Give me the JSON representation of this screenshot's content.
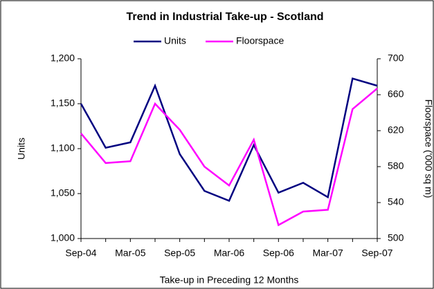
{
  "chart_data": {
    "type": "line",
    "title": "Trend in Industrial Take-up - Scotland",
    "x_label": "Take-up in Preceding 12 Months",
    "y_label": "Units",
    "y2_label": "Floorspace ('000 sq m)",
    "categories": [
      "Sep-04",
      null,
      "Mar-05",
      null,
      "Sep-05",
      null,
      "Mar-06",
      null,
      "Sep-06",
      null,
      "Mar-07",
      null,
      "Sep-07"
    ],
    "series": [
      {
        "name": "Units",
        "color": "#000080",
        "values": [
          1150,
          1101,
          1107,
          1170,
          1094,
          1053,
          1042,
          1104,
          1051,
          1062,
          1046,
          1178,
          1170
        ]
      },
      {
        "name": "Floorspace",
        "color": "#ff00ff",
        "axis": "y2",
        "values": [
          617,
          584,
          586,
          650,
          621,
          580,
          559,
          610,
          515,
          530,
          532,
          644,
          667
        ]
      }
    ],
    "ylim": [
      1000,
      1200
    ],
    "yticks": [
      {
        "value": 1000,
        "label": "1,000"
      },
      {
        "value": 1050,
        "label": "1,050"
      },
      {
        "value": 1100,
        "label": "1,100"
      },
      {
        "value": 1150,
        "label": "1,150"
      },
      {
        "value": 1200,
        "label": "1,200"
      }
    ],
    "y2lim": [
      500,
      700
    ],
    "y2ticks": [
      500,
      540,
      580,
      620,
      660,
      700
    ],
    "legend": "top"
  }
}
